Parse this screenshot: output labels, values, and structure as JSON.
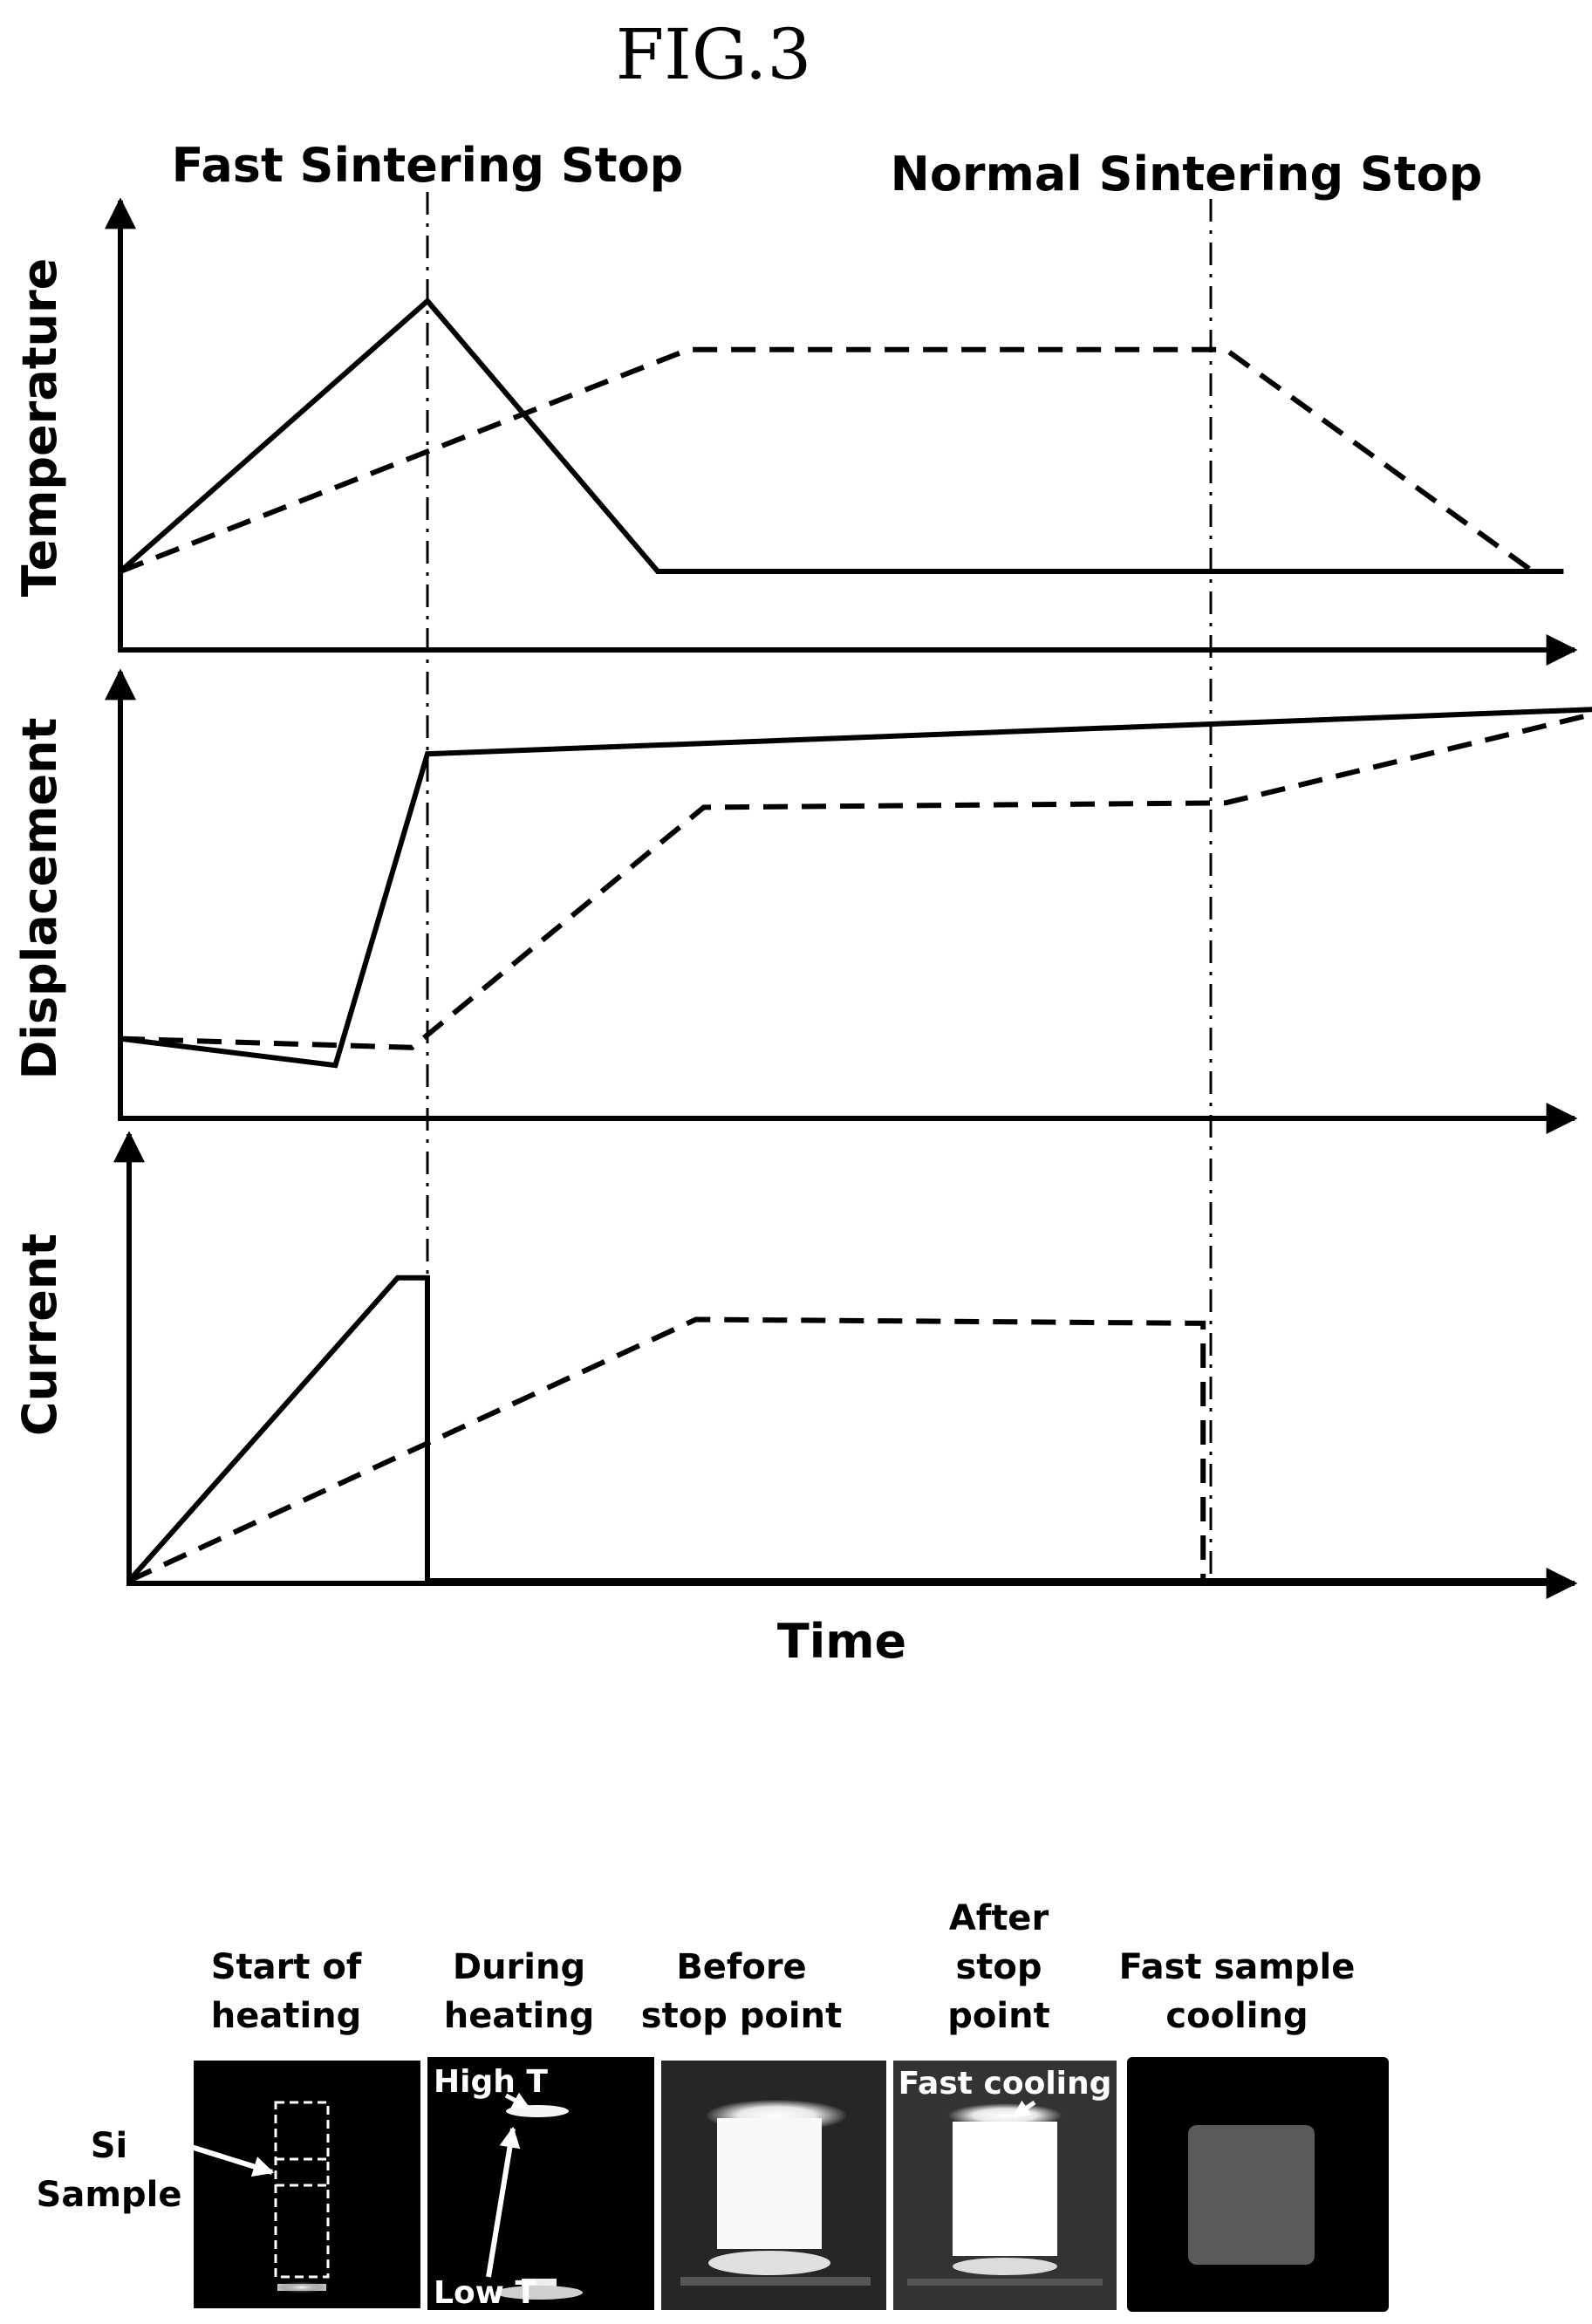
{
  "figure_title": "FIG.3",
  "stop_labels": {
    "fast": "Fast Sintering Stop",
    "normal": "Normal Sintering Stop"
  },
  "panels": [
    {
      "id": "temperature",
      "ylabel": "Temperature",
      "solid": [
        [
          0,
          0
        ],
        [
          1,
          1
        ],
        [
          1.75,
          0
        ],
        [
          4.7,
          0
        ]
      ],
      "dashed": [
        [
          0,
          0
        ],
        [
          1.85,
          0.82
        ],
        [
          3.6,
          0.82
        ],
        [
          4.6,
          0
        ]
      ]
    },
    {
      "id": "displacement",
      "ylabel": "Displacement",
      "solid": [
        [
          0,
          0.14
        ],
        [
          0.7,
          0.08
        ],
        [
          1.0,
          0.78
        ],
        [
          4.8,
          0.88
        ]
      ],
      "dashed": [
        [
          0,
          0.14
        ],
        [
          0.95,
          0.12
        ],
        [
          1.9,
          0.66
        ],
        [
          3.6,
          0.67
        ],
        [
          4.8,
          0.87
        ]
      ]
    },
    {
      "id": "current",
      "ylabel": "Current",
      "solid": [
        [
          0,
          0
        ],
        [
          0.9,
          0.8
        ],
        [
          1.0,
          0.8
        ],
        [
          1.0,
          0
        ],
        [
          4.8,
          0
        ]
      ],
      "dashed": [
        [
          0,
          0
        ],
        [
          1.9,
          0.69
        ],
        [
          3.6,
          0.68
        ],
        [
          3.6,
          0
        ],
        [
          4.8,
          0
        ]
      ]
    }
  ],
  "xlabel": "Time",
  "photos": {
    "captions": [
      "Start of\nheating",
      "During\nheating",
      "Before\nstop point",
      "After\nstop\npoint",
      "Fast sample\ncooling"
    ],
    "sample_label": "Si\nSample",
    "annotations": {
      "high_t": "High T",
      "low_t": "Low T",
      "fast_cooling": "Fast cooling"
    }
  },
  "colors": {
    "line": "#000000",
    "background": "#ffffff",
    "photo_background": "#000000"
  }
}
